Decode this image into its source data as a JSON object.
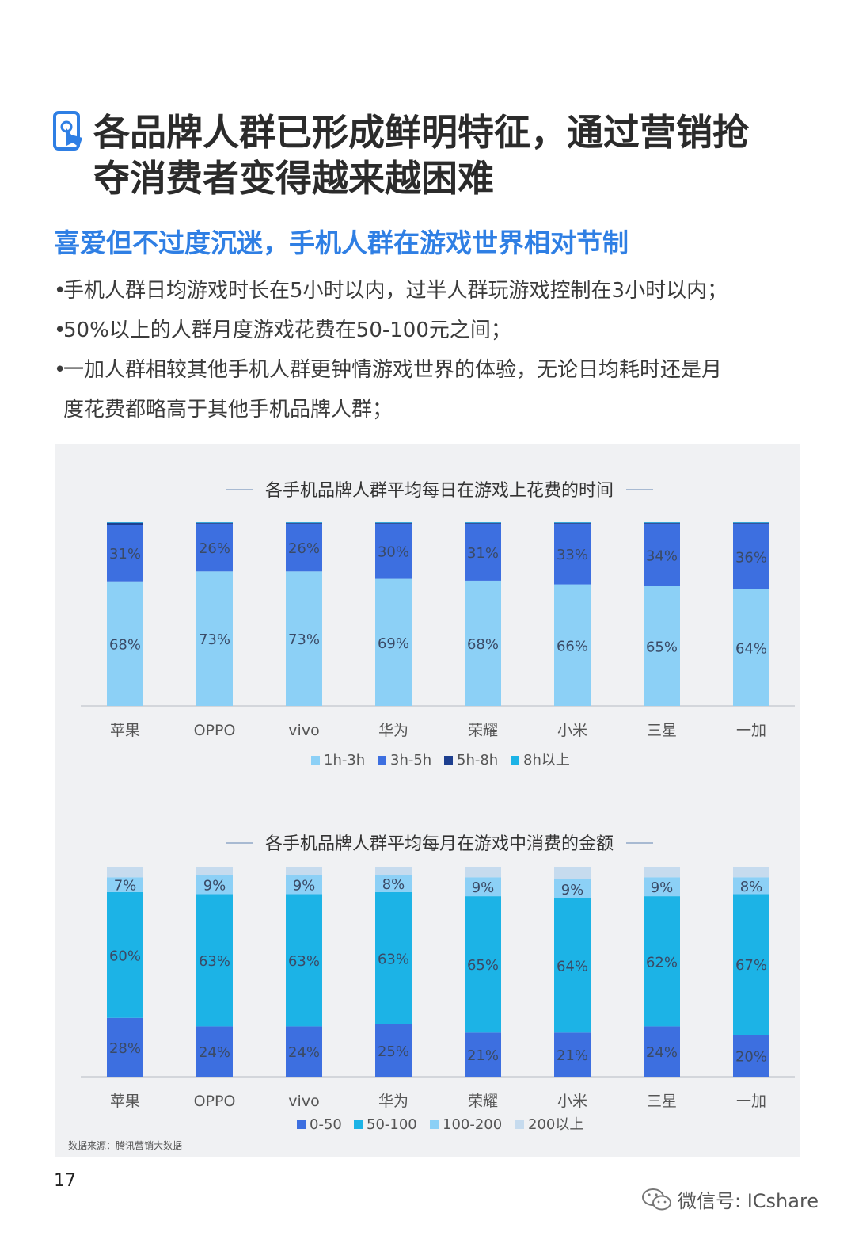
{
  "header": {
    "title_line1": "各品牌人群已形成鲜明特征，通过营销抢",
    "title_line2": "夺消费者变得越来越困难",
    "subtitle": "喜爱但不过度沉迷，手机人群在游戏世界相对节制",
    "icon": "phone-touch-icon"
  },
  "bullets": {
    "line1": "手机人群日均游戏时长在5小时以内，过半人群玩游戏控制在3小时以内；",
    "line2": "50%以上的人群月度游戏花费在50-100元之间；",
    "line3a": "一加人群相较其他手机人群更钟情游戏世界的体验，无论日均耗时还是月",
    "line3b": "度花费都略高于其他手机品牌人群；"
  },
  "chart_data": [
    {
      "type": "bar",
      "stacked": true,
      "title": "各手机品牌人群平均每日在游戏上花费的时间",
      "categories": [
        "苹果",
        "OPPO",
        "vivo",
        "华为",
        "荣耀",
        "小米",
        "三星",
        "一加"
      ],
      "series": [
        {
          "name": "1h-3h",
          "color": "#8cd0f6",
          "values": [
            68,
            73,
            73,
            69,
            68,
            66,
            65,
            64
          ],
          "labels": [
            "68%",
            "73%",
            "73%",
            "69%",
            "68%",
            "66%",
            "65%",
            "64%"
          ]
        },
        {
          "name": "3h-5h",
          "color": "#3d6fe0",
          "values": [
            31,
            26,
            26,
            30,
            31,
            33,
            34,
            36
          ],
          "labels": [
            "31%",
            "26%",
            "26%",
            "30%",
            "31%",
            "33%",
            "34%",
            "36%"
          ]
        },
        {
          "name": "5h-8h",
          "color": "#1d3f8f",
          "values": [
            1,
            0.5,
            0.5,
            0.5,
            0.5,
            0.5,
            0.5,
            0.5
          ],
          "labels": []
        },
        {
          "name": "8h以上",
          "color": "#1cb3e6",
          "values": [
            0.3,
            0.3,
            0.3,
            0.3,
            0.3,
            0.3,
            0.3,
            0.3
          ],
          "labels": []
        }
      ],
      "ylim": [
        0,
        100
      ],
      "legend": "bottom"
    },
    {
      "type": "bar",
      "stacked": true,
      "title": "各手机品牌人群平均每月在游戏中消费的金额",
      "categories": [
        "苹果",
        "OPPO",
        "vivo",
        "华为",
        "荣耀",
        "小米",
        "三星",
        "一加"
      ],
      "series": [
        {
          "name": "0-50",
          "color": "#3d6fe0",
          "values": [
            28,
            24,
            24,
            25,
            21,
            21,
            24,
            20
          ],
          "labels": [
            "28%",
            "24%",
            "24%",
            "25%",
            "21%",
            "21%",
            "24%",
            "20%"
          ]
        },
        {
          "name": "50-100",
          "color": "#1cb3e6",
          "values": [
            60,
            63,
            63,
            63,
            65,
            64,
            62,
            67
          ],
          "labels": [
            "60%",
            "63%",
            "63%",
            "63%",
            "65%",
            "64%",
            "62%",
            "67%"
          ]
        },
        {
          "name": "100-200",
          "color": "#8cd0f6",
          "values": [
            7,
            9,
            9,
            8,
            9,
            9,
            9,
            8
          ],
          "labels": [
            "7%",
            "9%",
            "9%",
            "8%",
            "9%",
            "9%",
            "9%",
            "8%"
          ]
        },
        {
          "name": "200以上",
          "color": "#c6dbee",
          "values": [
            5,
            4,
            4,
            4,
            5,
            6,
            5,
            5
          ],
          "labels": []
        }
      ],
      "ylim": [
        0,
        100
      ],
      "legend": "bottom"
    }
  ],
  "footer": {
    "source": "数据来源：腾讯营销大数据",
    "page_number": "17",
    "wechat": "微信号: ICshare",
    "wechat_icon": "wechat-logo-icon"
  }
}
